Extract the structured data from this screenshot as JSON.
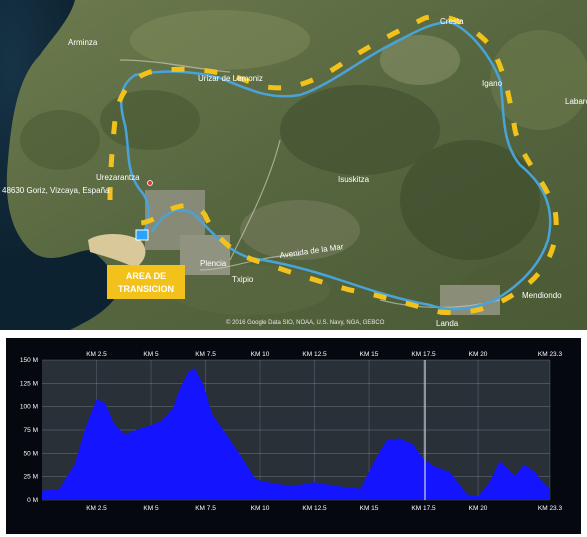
{
  "map": {
    "places": [
      {
        "id": "arminza",
        "name": "Arminza"
      },
      {
        "id": "urizar",
        "name": "Urizar de Lemoniz"
      },
      {
        "id": "cresta",
        "name": "Cresta"
      },
      {
        "id": "igano",
        "name": "Igano"
      },
      {
        "id": "labaro",
        "name": "Labaro"
      },
      {
        "id": "urezarantza",
        "name": "Urezarantza"
      },
      {
        "id": "goriz",
        "name": "48630 Goriz, Vizcaya, España"
      },
      {
        "id": "isuskitza",
        "name": "Isuskitza"
      },
      {
        "id": "plencia",
        "name": "Plencia"
      },
      {
        "id": "txipio",
        "name": "Txipio"
      },
      {
        "id": "mendiondo",
        "name": "Mendiondo"
      },
      {
        "id": "landa",
        "name": "Landa"
      }
    ],
    "transition_label_line1": "AREA DE",
    "transition_label_line2": "TRANSICION",
    "attribution": "© 2016 Google  Data SIO, NOAA, U.S. Navy, NGA, GEBCO",
    "road_label": "Avenida de la Mar",
    "colors": {
      "route": "#4aa3d8",
      "arrow": "#f2c21a",
      "label_bg": "#f2c21a",
      "label_text": "#ffffff"
    }
  },
  "profile": {
    "y_ticks": [
      "150 M",
      "125 M",
      "100 M",
      "75 M",
      "50 M",
      "25 M",
      "0 M"
    ],
    "top_ticks": [
      "KM 2.5",
      "KM 5",
      "KM 7.5",
      "KM 10",
      "KM 12.5",
      "KM 15",
      "KM 17.5",
      "KM 20",
      "KM 23.3"
    ],
    "bottom_ticks": [
      "KM 2.5",
      "KM 5",
      "KM 7.5",
      "KM 10",
      "KM 12.5",
      "KM 15",
      "KM 17.5",
      "KM 20",
      "KM 23.3"
    ],
    "colors": {
      "fill": "#1414ff",
      "background": "#05080f",
      "plot_bg": "#2a3038",
      "grid": "#9aa3ad",
      "text": "#ffffff"
    }
  },
  "chart_data": {
    "type": "area",
    "xlabel": "",
    "ylabel": "",
    "xlim": [
      0,
      23.3
    ],
    "ylim": [
      0,
      150
    ],
    "x": [
      0,
      0.8,
      1.5,
      2.0,
      2.5,
      2.9,
      3.3,
      3.8,
      4.3,
      5.0,
      5.5,
      6.0,
      6.3,
      6.7,
      7.0,
      7.4,
      7.8,
      8.4,
      9.1,
      9.8,
      10.6,
      11.5,
      12.5,
      13.5,
      14.6,
      15.3,
      15.8,
      16.4,
      17.0,
      17.5,
      18.0,
      18.7,
      19.5,
      20.0,
      20.5,
      21.0,
      21.3,
      21.7,
      22.1,
      22.6,
      23.0,
      23.3
    ],
    "values": [
      10,
      12,
      38,
      78,
      108,
      104,
      82,
      70,
      75,
      80,
      85,
      98,
      118,
      137,
      141,
      124,
      92,
      72,
      48,
      22,
      18,
      15,
      19,
      15,
      12,
      44,
      64,
      66,
      60,
      44,
      36,
      30,
      6,
      4,
      18,
      42,
      35,
      26,
      38,
      30,
      18,
      12
    ]
  }
}
